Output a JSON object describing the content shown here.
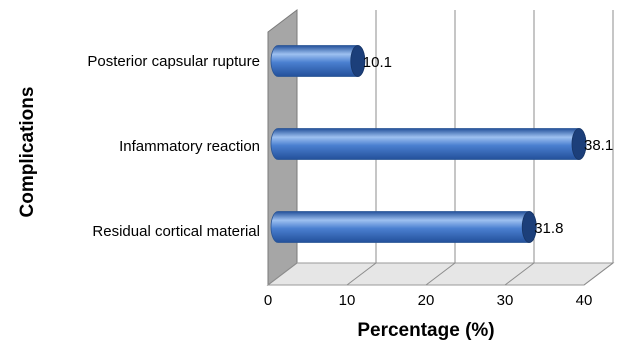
{
  "chart_data": {
    "type": "bar",
    "orientation": "horizontal",
    "style": "3d-cylinder",
    "categories": [
      "Posterior capsular rupture",
      "Infammatory reaction",
      "Residual cortical material"
    ],
    "values": [
      10.1,
      38.1,
      31.8
    ],
    "data_labels": [
      "10.1",
      "38.1",
      "31.8"
    ],
    "xlabel": "Percentage (%)",
    "ylabel": "Complications",
    "xlim": [
      0,
      40
    ],
    "x_ticks": [
      "0",
      "10",
      "20",
      "30",
      "40"
    ],
    "grid": true,
    "legend": "none",
    "colors": {
      "bar_body": "#4a7fd0",
      "bar_highlight": "#9dc0f0",
      "bar_shadow": "#23509a",
      "bar_cap": "#1c3f7a",
      "wall": "#a6a6a6",
      "floor": "#e6e6e6",
      "gridline": "#8c8c8c"
    }
  }
}
